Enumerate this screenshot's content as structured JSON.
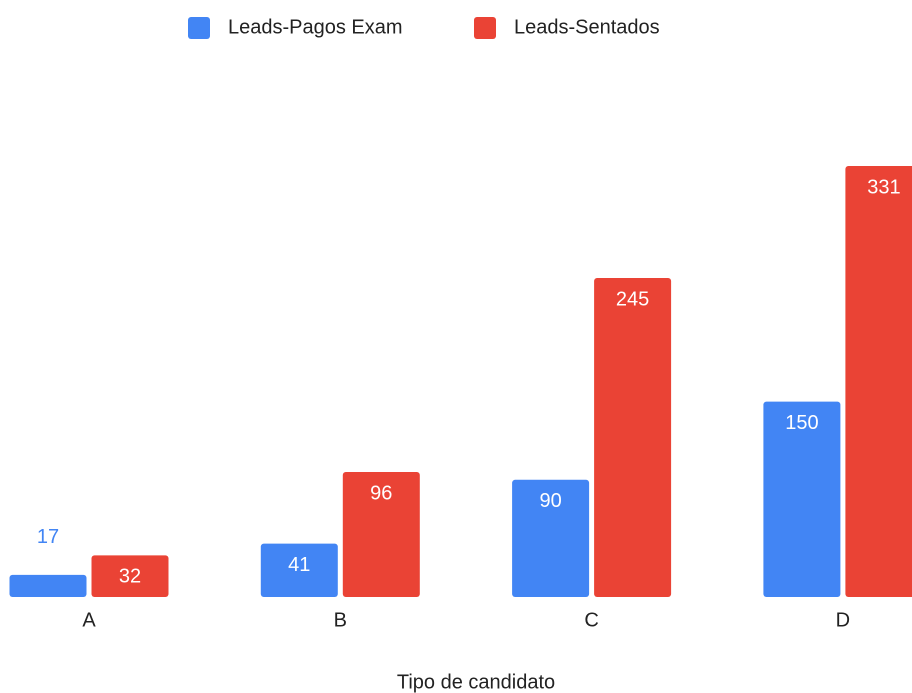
{
  "chart_data": {
    "type": "bar",
    "x_label": "Tipo de candidato",
    "categories": [
      "A",
      "B",
      "C",
      "D"
    ],
    "series": [
      {
        "name": "Leads-Pagos Exam",
        "color": "#4285f4",
        "values": [
          17,
          41,
          90,
          150
        ]
      },
      {
        "name": "Leads-Sentados",
        "color": "#ea4335",
        "values": [
          32,
          96,
          245,
          331
        ]
      }
    ],
    "legend": "top"
  }
}
